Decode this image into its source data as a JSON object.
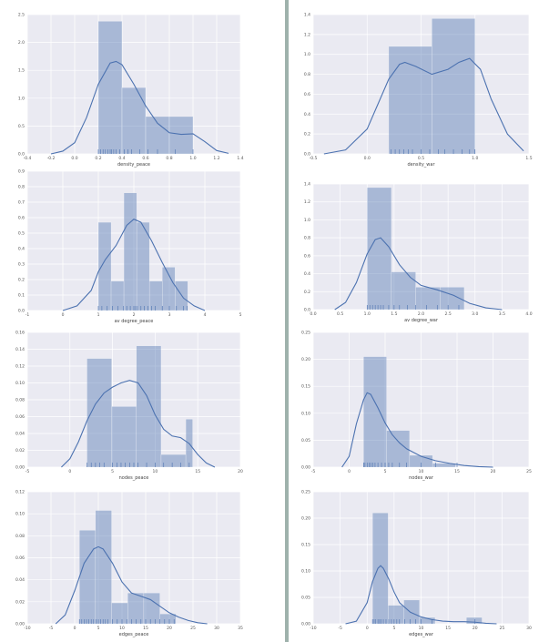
{
  "colors": {
    "background": "#eaeaf2",
    "grid": "#ffffff",
    "bar": "#4c72b0",
    "kde": "#4c72b0",
    "divider": "#9fb2ac"
  },
  "chart_data": [
    {
      "type": "bar",
      "xlabel": "density_peace",
      "xlim": [
        -0.4,
        1.4
      ],
      "ylim": [
        0,
        2.5
      ],
      "xticks": [
        "-0.4",
        "-0.2",
        "0.0",
        "0.2",
        "0.4",
        "0.6",
        "0.8",
        "1.0",
        "1.2",
        "1.4"
      ],
      "yticks": [
        "0.0",
        "0.5",
        "1.0",
        "1.5",
        "2.0",
        "2.5"
      ],
      "bins": [
        [
          0.2,
          0.4,
          2.38
        ],
        [
          0.4,
          0.6,
          1.19
        ],
        [
          0.6,
          0.8,
          0.67
        ],
        [
          0.8,
          1.0,
          0.67
        ]
      ],
      "kde": [
        [
          -0.2,
          0.0
        ],
        [
          -0.1,
          0.05
        ],
        [
          0.0,
          0.2
        ],
        [
          0.1,
          0.65
        ],
        [
          0.2,
          1.25
        ],
        [
          0.3,
          1.63
        ],
        [
          0.35,
          1.66
        ],
        [
          0.4,
          1.6
        ],
        [
          0.5,
          1.25
        ],
        [
          0.6,
          0.86
        ],
        [
          0.7,
          0.55
        ],
        [
          0.8,
          0.38
        ],
        [
          0.9,
          0.35
        ],
        [
          1.0,
          0.36
        ],
        [
          1.1,
          0.22
        ],
        [
          1.2,
          0.06
        ],
        [
          1.3,
          0.01
        ]
      ],
      "rug": [
        0.2,
        0.22,
        0.24,
        0.26,
        0.28,
        0.3,
        0.31,
        0.33,
        0.35,
        0.38,
        0.42,
        0.45,
        0.48,
        0.55,
        0.62,
        0.7,
        0.85,
        1.0
      ]
    },
    {
      "type": "bar",
      "xlabel": "density_war",
      "xlim": [
        -0.5,
        1.5
      ],
      "ylim": [
        0,
        1.4
      ],
      "xticks": [
        "-0.5",
        "0.0",
        "0.5",
        "1.0",
        "1.5"
      ],
      "yticks": [
        "0.0",
        "0.2",
        "0.4",
        "0.6",
        "0.8",
        "1.0",
        "1.2",
        "1.4"
      ],
      "bins": [
        [
          0.2,
          0.6,
          1.08
        ],
        [
          0.6,
          1.0,
          1.36
        ]
      ],
      "kde": [
        [
          -0.4,
          0.0
        ],
        [
          -0.2,
          0.04
        ],
        [
          0.0,
          0.25
        ],
        [
          0.1,
          0.5
        ],
        [
          0.2,
          0.75
        ],
        [
          0.3,
          0.9
        ],
        [
          0.35,
          0.92
        ],
        [
          0.45,
          0.88
        ],
        [
          0.6,
          0.8
        ],
        [
          0.75,
          0.85
        ],
        [
          0.85,
          0.92
        ],
        [
          0.95,
          0.96
        ],
        [
          1.05,
          0.85
        ],
        [
          1.15,
          0.55
        ],
        [
          1.3,
          0.2
        ],
        [
          1.45,
          0.03
        ]
      ],
      "rug": [
        0.22,
        0.26,
        0.3,
        0.34,
        0.38,
        0.42,
        0.5,
        0.58,
        0.66,
        0.72,
        0.8,
        0.88,
        0.95,
        1.0
      ]
    },
    {
      "type": "bar",
      "xlabel": "av degree_peace",
      "xlim": [
        -1,
        5
      ],
      "ylim": [
        0,
        0.9
      ],
      "xticks": [
        "-1",
        "0",
        "1",
        "2",
        "3",
        "4",
        "5"
      ],
      "yticks": [
        "0.0",
        "0.1",
        "0.2",
        "0.3",
        "0.4",
        "0.5",
        "0.6",
        "0.7",
        "0.8",
        "0.9"
      ],
      "bins": [
        [
          1.0,
          1.36,
          0.57
        ],
        [
          1.36,
          1.72,
          0.19
        ],
        [
          1.72,
          2.08,
          0.76
        ],
        [
          2.08,
          2.44,
          0.57
        ],
        [
          2.44,
          2.8,
          0.19
        ],
        [
          2.8,
          3.16,
          0.28
        ],
        [
          3.16,
          3.52,
          0.19
        ]
      ],
      "kde": [
        [
          0.0,
          0.0
        ],
        [
          0.4,
          0.03
        ],
        [
          0.8,
          0.13
        ],
        [
          1.0,
          0.25
        ],
        [
          1.2,
          0.33
        ],
        [
          1.5,
          0.42
        ],
        [
          1.8,
          0.55
        ],
        [
          2.0,
          0.59
        ],
        [
          2.2,
          0.57
        ],
        [
          2.5,
          0.45
        ],
        [
          2.8,
          0.31
        ],
        [
          3.1,
          0.18
        ],
        [
          3.4,
          0.08
        ],
        [
          3.7,
          0.03
        ],
        [
          4.0,
          0.0
        ]
      ],
      "rug": [
        1.0,
        1.1,
        1.25,
        1.4,
        1.55,
        1.7,
        1.8,
        1.9,
        2.0,
        2.05,
        2.1,
        2.2,
        2.3,
        2.4,
        2.5,
        2.6,
        2.8,
        3.0,
        3.2,
        3.4,
        3.5
      ]
    },
    {
      "type": "bar",
      "xlabel": "av degree_war",
      "xlim": [
        0.0,
        4.0
      ],
      "ylim": [
        0,
        1.4
      ],
      "xticks": [
        "0.0",
        "0.5",
        "1.0",
        "1.5",
        "2.0",
        "2.5",
        "3.0",
        "3.5",
        "4.0"
      ],
      "yticks": [
        "0.0",
        "0.2",
        "0.4",
        "0.6",
        "0.8",
        "1.0",
        "1.2",
        "1.4"
      ],
      "bins": [
        [
          1.0,
          1.45,
          1.36
        ],
        [
          1.45,
          1.9,
          0.42
        ],
        [
          1.9,
          2.35,
          0.25
        ],
        [
          2.35,
          2.8,
          0.25
        ]
      ],
      "kde": [
        [
          0.4,
          0.0
        ],
        [
          0.6,
          0.08
        ],
        [
          0.8,
          0.3
        ],
        [
          1.0,
          0.62
        ],
        [
          1.15,
          0.78
        ],
        [
          1.25,
          0.8
        ],
        [
          1.4,
          0.7
        ],
        [
          1.6,
          0.5
        ],
        [
          1.8,
          0.36
        ],
        [
          2.0,
          0.27
        ],
        [
          2.3,
          0.22
        ],
        [
          2.6,
          0.16
        ],
        [
          2.9,
          0.07
        ],
        [
          3.2,
          0.02
        ],
        [
          3.5,
          0.0
        ]
      ],
      "rug": [
        1.0,
        1.05,
        1.1,
        1.15,
        1.2,
        1.25,
        1.3,
        1.4,
        1.5,
        1.6,
        1.75,
        1.9,
        2.1,
        2.3,
        2.5,
        2.7
      ]
    },
    {
      "type": "bar",
      "xlabel": "nodes_peace",
      "xlim": [
        -5,
        20
      ],
      "ylim": [
        0,
        0.16
      ],
      "xticks": [
        "-5",
        "0",
        "5",
        "10",
        "15",
        "20"
      ],
      "yticks": [
        "0.00",
        "0.02",
        "0.04",
        "0.06",
        "0.08",
        "0.10",
        "0.12",
        "0.14",
        "0.16"
      ],
      "bins": [
        [
          2.0,
          4.9,
          0.129
        ],
        [
          4.9,
          7.8,
          0.072
        ],
        [
          7.8,
          10.7,
          0.144
        ],
        [
          10.7,
          13.6,
          0.015
        ],
        [
          13.6,
          14.4,
          0.057
        ]
      ],
      "kde": [
        [
          -1,
          0.0
        ],
        [
          0,
          0.01
        ],
        [
          1,
          0.03
        ],
        [
          2,
          0.055
        ],
        [
          3,
          0.075
        ],
        [
          4,
          0.088
        ],
        [
          5,
          0.095
        ],
        [
          6,
          0.1
        ],
        [
          7,
          0.103
        ],
        [
          8,
          0.1
        ],
        [
          9,
          0.085
        ],
        [
          10,
          0.062
        ],
        [
          11,
          0.045
        ],
        [
          12,
          0.037
        ],
        [
          13,
          0.035
        ],
        [
          14,
          0.028
        ],
        [
          15,
          0.015
        ],
        [
          16,
          0.005
        ],
        [
          17,
          0.0
        ]
      ],
      "rug": [
        2,
        2.5,
        3,
        3.5,
        4,
        5,
        5.5,
        6,
        6.5,
        7,
        7.5,
        8,
        9,
        10,
        11,
        12,
        13,
        14
      ]
    },
    {
      "type": "bar",
      "xlabel": "nodes_war",
      "xlim": [
        -5,
        25
      ],
      "ylim": [
        0,
        0.25
      ],
      "xticks": [
        "-5",
        "0",
        "5",
        "10",
        "15",
        "20",
        "25"
      ],
      "yticks": [
        "0.00",
        "0.05",
        "0.10",
        "0.15",
        "0.20",
        "0.25"
      ],
      "bins": [
        [
          2.0,
          5.2,
          0.205
        ],
        [
          5.2,
          8.4,
          0.068
        ],
        [
          8.4,
          11.6,
          0.022
        ],
        [
          11.6,
          14.8,
          0.007
        ]
      ],
      "kde": [
        [
          -1,
          0.0
        ],
        [
          0,
          0.02
        ],
        [
          1,
          0.08
        ],
        [
          2,
          0.125
        ],
        [
          2.5,
          0.138
        ],
        [
          3,
          0.135
        ],
        [
          4,
          0.11
        ],
        [
          5,
          0.082
        ],
        [
          6,
          0.06
        ],
        [
          7,
          0.045
        ],
        [
          8,
          0.034
        ],
        [
          10,
          0.02
        ],
        [
          12,
          0.012
        ],
        [
          14,
          0.007
        ],
        [
          16,
          0.003
        ],
        [
          18,
          0.001
        ],
        [
          20,
          0.0
        ]
      ],
      "rug": [
        2,
        2.2,
        2.5,
        2.8,
        3,
        3.3,
        3.6,
        4,
        4.5,
        5,
        5.5,
        6,
        7,
        8,
        10,
        12,
        15
      ]
    },
    {
      "type": "bar",
      "xlabel": "edges_peace",
      "xlim": [
        -10,
        35
      ],
      "ylim": [
        0,
        0.12
      ],
      "xticks": [
        "-10",
        "-5",
        "0",
        "5",
        "10",
        "15",
        "20",
        "25",
        "30",
        "35"
      ],
      "yticks": [
        "0.00",
        "0.02",
        "0.04",
        "0.06",
        "0.08",
        "0.10",
        "0.12"
      ],
      "bins": [
        [
          1.0,
          4.4,
          0.085
        ],
        [
          4.4,
          7.8,
          0.103
        ],
        [
          7.8,
          11.2,
          0.019
        ],
        [
          11.2,
          14.6,
          0.028
        ],
        [
          14.6,
          18.0,
          0.028
        ],
        [
          18.0,
          21.4,
          0.009
        ]
      ],
      "kde": [
        [
          -4,
          0.0
        ],
        [
          -2,
          0.008
        ],
        [
          0,
          0.03
        ],
        [
          2,
          0.055
        ],
        [
          4,
          0.068
        ],
        [
          5,
          0.07
        ],
        [
          6,
          0.068
        ],
        [
          8,
          0.055
        ],
        [
          10,
          0.038
        ],
        [
          12,
          0.028
        ],
        [
          14,
          0.025
        ],
        [
          16,
          0.022
        ],
        [
          18,
          0.016
        ],
        [
          20,
          0.01
        ],
        [
          22,
          0.006
        ],
        [
          24,
          0.003
        ],
        [
          26,
          0.001
        ],
        [
          28,
          0.0
        ]
      ],
      "rug": [
        1,
        1.5,
        2,
        2.5,
        3,
        3.5,
        4,
        4.5,
        5,
        5.5,
        6,
        6.5,
        7,
        8,
        9,
        10,
        11,
        12,
        13,
        14,
        15,
        16,
        17,
        18,
        19,
        20,
        21
      ]
    },
    {
      "type": "bar",
      "xlabel": "edges_war",
      "xlim": [
        -10,
        30
      ],
      "ylim": [
        0,
        0.25
      ],
      "xticks": [
        "-10",
        "-5",
        "0",
        "5",
        "10",
        "15",
        "20",
        "25",
        "30"
      ],
      "yticks": [
        "0.00",
        "0.05",
        "0.10",
        "0.15",
        "0.20",
        "0.25"
      ],
      "bins": [
        [
          1.0,
          3.9,
          0.21
        ],
        [
          3.9,
          6.8,
          0.035
        ],
        [
          6.8,
          9.7,
          0.045
        ],
        [
          9.7,
          12.6,
          0.012
        ],
        [
          12.6,
          15.5,
          0.0
        ],
        [
          15.5,
          18.4,
          0.0
        ],
        [
          18.4,
          21.3,
          0.012
        ]
      ],
      "kde": [
        [
          -4,
          0.0
        ],
        [
          -2,
          0.005
        ],
        [
          0,
          0.04
        ],
        [
          1,
          0.08
        ],
        [
          2,
          0.105
        ],
        [
          2.5,
          0.11
        ],
        [
          3,
          0.105
        ],
        [
          4,
          0.085
        ],
        [
          5,
          0.06
        ],
        [
          6,
          0.04
        ],
        [
          8,
          0.022
        ],
        [
          10,
          0.013
        ],
        [
          12,
          0.008
        ],
        [
          14,
          0.005
        ],
        [
          16,
          0.004
        ],
        [
          18,
          0.004
        ],
        [
          20,
          0.003
        ],
        [
          22,
          0.001
        ],
        [
          24,
          0.0
        ]
      ],
      "rug": [
        1,
        1.3,
        1.6,
        2,
        2.3,
        2.6,
        3,
        3.5,
        4,
        4.5,
        5,
        5.5,
        6,
        7,
        8,
        9,
        10,
        12,
        20
      ]
    }
  ]
}
